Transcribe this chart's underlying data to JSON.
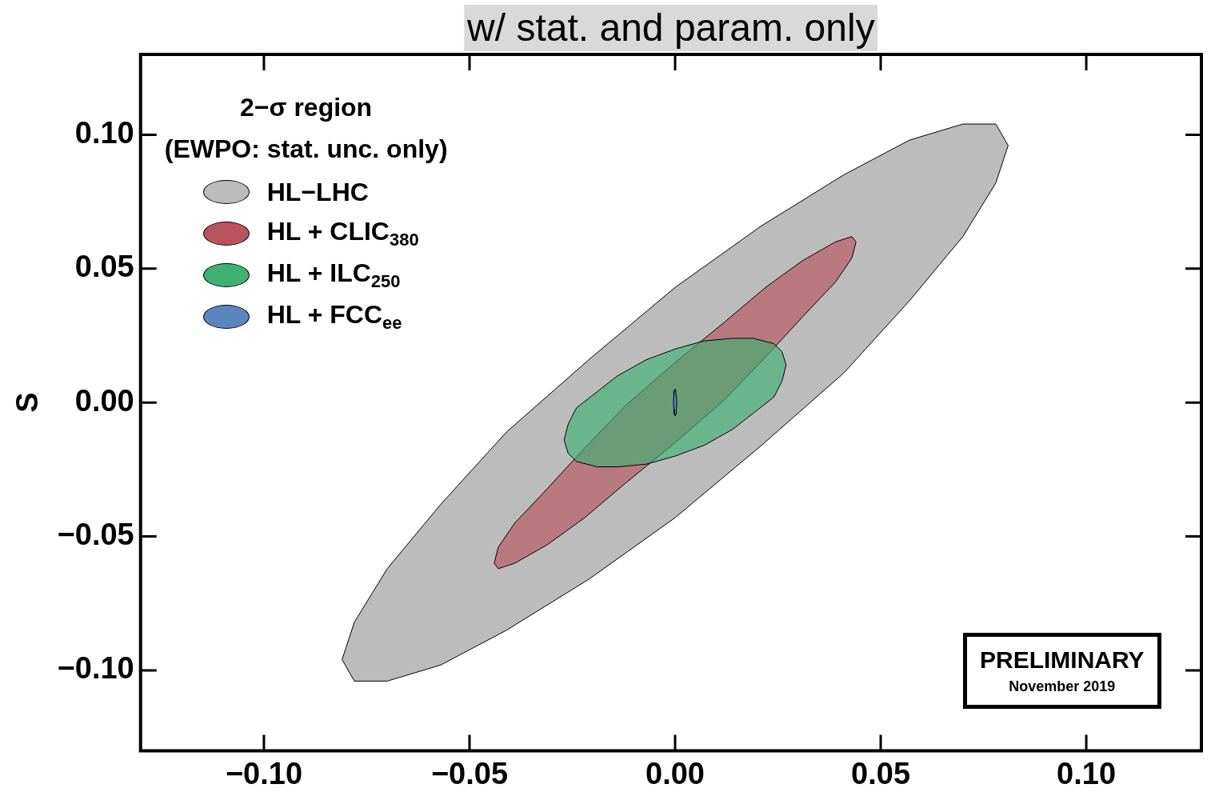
{
  "chart_data": {
    "type": "area",
    "title": "w/ stat. and param. only",
    "ylabel": "S",
    "legend_title": "2−σ region\n(EWPO: stat. unc. only)",
    "legend": "top left",
    "xlim": [
      -0.13,
      0.128
    ],
    "ylim": [
      -0.13,
      0.13
    ],
    "xticks": [
      {
        "value": -0.1,
        "label": "−0.10"
      },
      {
        "value": -0.05,
        "label": "−0.05"
      },
      {
        "value": 0,
        "label": "0.00"
      },
      {
        "value": 0.05,
        "label": "0.05"
      },
      {
        "value": 0.1,
        "label": "0.10"
      }
    ],
    "yticks": [
      {
        "value": -0.1,
        "label": "−0.10"
      },
      {
        "value": -0.05,
        "label": "−0.05"
      },
      {
        "value": 0,
        "label": "0.00"
      },
      {
        "value": 0.05,
        "label": "0.05"
      },
      {
        "value": 0.1,
        "label": "0.10"
      }
    ],
    "series": [
      {
        "name": "HL−LHC",
        "color": "#bcbcbc",
        "x": [
          0.081,
          0.078,
          0.07,
          0.057,
          0.041,
          0.021,
          0,
          -0.021,
          -0.041,
          -0.057,
          -0.07,
          -0.078,
          -0.081,
          -0.078,
          -0.07,
          -0.057,
          -0.041,
          -0.021,
          0,
          0.021,
          0.041,
          0.057,
          0.07,
          0.078,
          0.081
        ],
        "values": [
          0.096,
          0.104,
          0.104,
          0.098,
          0.085,
          0.066,
          0.043,
          0.016,
          -0.011,
          -0.038,
          -0.062,
          -0.082,
          -0.096,
          -0.104,
          -0.104,
          -0.098,
          -0.085,
          -0.066,
          -0.043,
          -0.016,
          0.011,
          0.038,
          0.062,
          0.082,
          0.096
        ]
      },
      {
        "name": "HL + CLIC$_{380}$",
        "color": "#b9545e",
        "x": [
          0.044,
          0.043,
          0.039,
          0.031,
          0.022,
          0.012,
          0,
          -0.012,
          -0.022,
          -0.031,
          -0.039,
          -0.043,
          -0.044,
          -0.043,
          -0.039,
          -0.031,
          -0.022,
          -0.012,
          0,
          0.012,
          0.022,
          0.031,
          0.039,
          0.043,
          0.044
        ],
        "values": [
          0.06,
          0.062,
          0.06,
          0.053,
          0.043,
          0.03,
          0.015,
          -0.001,
          -0.017,
          -0.032,
          -0.045,
          -0.054,
          -0.06,
          -0.062,
          -0.06,
          -0.053,
          -0.043,
          -0.03,
          -0.015,
          0.001,
          0.017,
          0.032,
          0.045,
          0.054,
          0.06
        ]
      },
      {
        "name": "HL + ILC$_{250}$",
        "color": "#3fb072",
        "x": [
          0.027,
          0.026,
          0.024,
          0.019,
          0.014,
          0.007,
          0,
          -0.007,
          -0.014,
          -0.019,
          -0.024,
          -0.026,
          -0.027,
          -0.026,
          -0.024,
          -0.019,
          -0.014,
          -0.007,
          0,
          0.007,
          0.014,
          0.019,
          0.024,
          0.026,
          0.027
        ],
        "values": [
          0.014,
          0.019,
          0.022,
          0.024,
          0.024,
          0.023,
          0.02,
          0.016,
          0.01,
          0.004,
          -0.002,
          -0.008,
          -0.014,
          -0.019,
          -0.022,
          -0.024,
          -0.024,
          -0.023,
          -0.02,
          -0.016,
          -0.01,
          -0.004,
          0.002,
          0.008,
          0.014
        ]
      },
      {
        "name": "HL + FCC$_{ee}$",
        "color": "#5b85c1",
        "x": [
          0.0004,
          0.0003,
          0.0002,
          0,
          -0.0002,
          -0.0003,
          -0.0004,
          -0.0003,
          -0.0002,
          0,
          0.0002,
          0.0003,
          0.0004
        ],
        "values": [
          0,
          0.0025,
          0.0043,
          0.005,
          0.0043,
          0.0025,
          0,
          -0.0025,
          -0.0043,
          -0.005,
          -0.0043,
          -0.0025,
          0
        ]
      }
    ],
    "annotations": [
      "PRELIMINARY",
      "November 2019"
    ]
  }
}
